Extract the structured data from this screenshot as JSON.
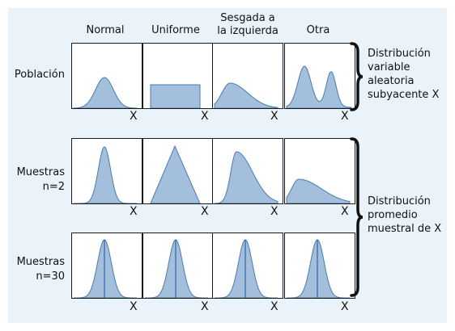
{
  "columns": [
    "Normal",
    "Uniforme",
    "Sesgada a la izquierda",
    "Otra"
  ],
  "column_lines": [
    [
      "Normal"
    ],
    [
      "Uniforme"
    ],
    [
      "Sesgada a",
      "la izquierda"
    ],
    [
      "Otra"
    ]
  ],
  "rows": [
    {
      "label_lines": [
        "Población"
      ],
      "label": "Población"
    },
    {
      "label_lines": [
        "Muestras",
        "n=2"
      ],
      "label": "Muestras n=2"
    },
    {
      "label_lines": [
        "Muestras",
        "n=30"
      ],
      "label": "Muestras n=30"
    }
  ],
  "axis_label": "X",
  "group_labels": {
    "top": {
      "lines": [
        "Distribución",
        "variable",
        "aleatoria",
        "subyacente X"
      ]
    },
    "bottom": {
      "lines": [
        "Distribución",
        "promedio",
        "muestral de X"
      ]
    }
  },
  "colors": {
    "fill": "#a3bfdb",
    "stroke": "#4a7bad",
    "mean_line": "#2f62a3",
    "background": "#eaf3fa"
  }
}
